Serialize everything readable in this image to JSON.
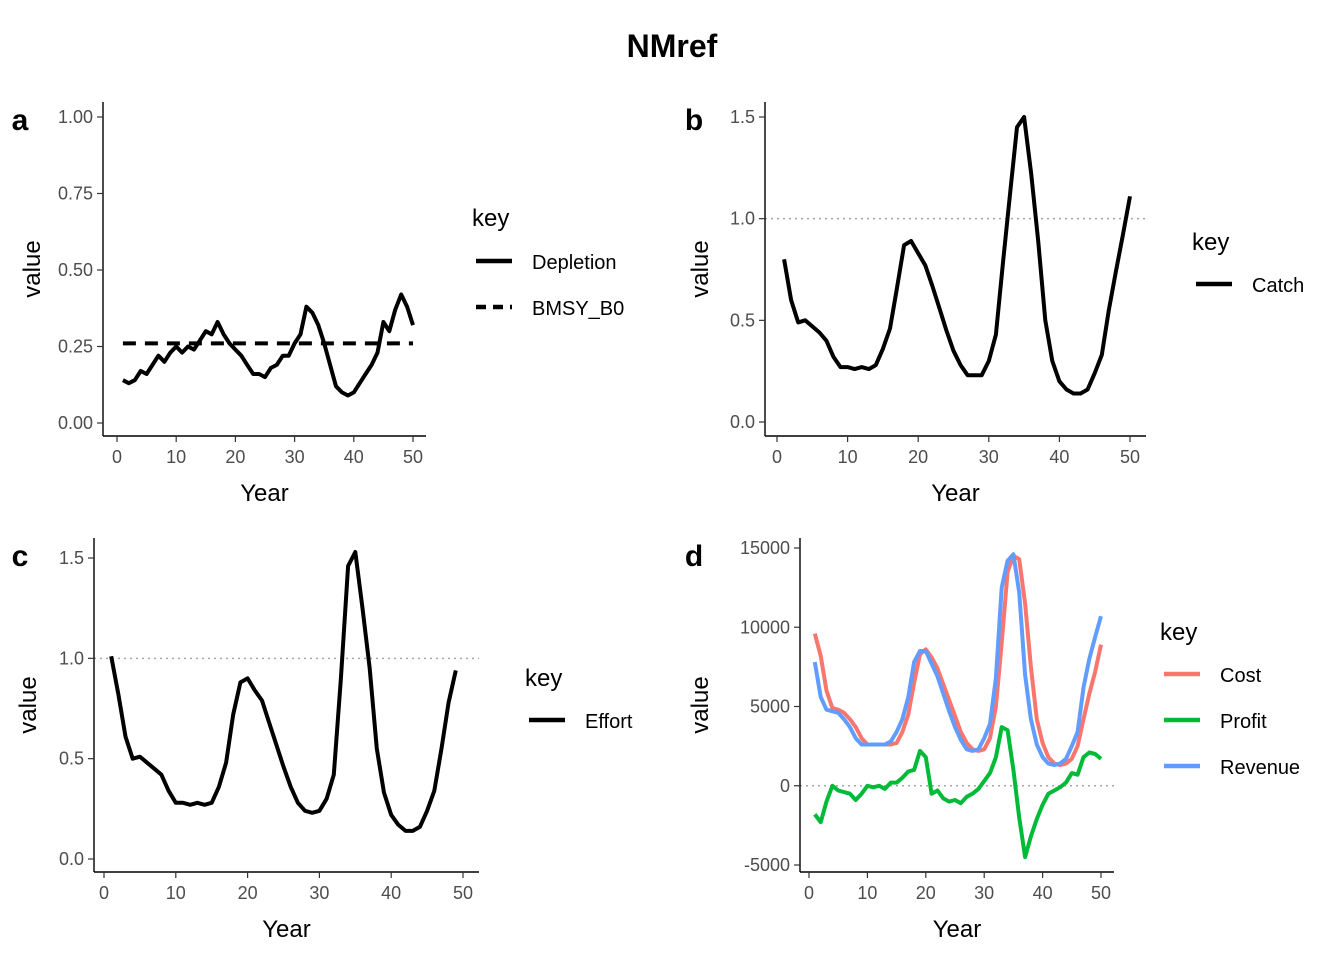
{
  "title": "NMref",
  "chart_data": [
    {
      "panel": "a",
      "type": "line",
      "xlabel": "Year",
      "ylabel": "value",
      "xlim": [
        0,
        50
      ],
      "ylim": [
        0,
        1
      ],
      "xticks": [
        "0",
        "10",
        "20",
        "30",
        "40",
        "50"
      ],
      "yticks": [
        "0.00",
        "0.25",
        "0.50",
        "0.75",
        "1.00"
      ],
      "ref_line": null,
      "legend": {
        "title": "key",
        "position": "right"
      },
      "series": [
        {
          "name": "Depletion",
          "style": "solid",
          "color": "#000000",
          "x": [
            1,
            2,
            3,
            4,
            5,
            6,
            7,
            8,
            9,
            10,
            11,
            12,
            13,
            14,
            15,
            16,
            17,
            18,
            19,
            20,
            21,
            22,
            23,
            24,
            25,
            26,
            27,
            28,
            29,
            30,
            31,
            32,
            33,
            34,
            35,
            36,
            37,
            38,
            39,
            40,
            41,
            42,
            43,
            44,
            45,
            46,
            47,
            48,
            49,
            50
          ],
          "y": [
            0.14,
            0.13,
            0.14,
            0.17,
            0.16,
            0.19,
            0.22,
            0.2,
            0.23,
            0.25,
            0.23,
            0.25,
            0.24,
            0.27,
            0.3,
            0.29,
            0.33,
            0.29,
            0.26,
            0.24,
            0.22,
            0.19,
            0.16,
            0.16,
            0.15,
            0.18,
            0.19,
            0.22,
            0.22,
            0.26,
            0.29,
            0.38,
            0.36,
            0.32,
            0.26,
            0.19,
            0.12,
            0.1,
            0.09,
            0.1,
            0.13,
            0.16,
            0.19,
            0.23,
            0.33,
            0.3,
            0.37,
            0.42,
            0.38,
            0.32
          ]
        },
        {
          "name": "BMSY_B0",
          "style": "dashed",
          "color": "#000000",
          "x": [
            1,
            50
          ],
          "y": [
            0.26,
            0.26
          ]
        }
      ]
    },
    {
      "panel": "b",
      "type": "line",
      "xlabel": "Year",
      "ylabel": "value",
      "xlim": [
        0,
        50
      ],
      "ylim": [
        0,
        1.5
      ],
      "xticks": [
        "0",
        "10",
        "20",
        "30",
        "40",
        "50"
      ],
      "yticks": [
        "0.0",
        "0.5",
        "1.0",
        "1.5"
      ],
      "ref_line": 1.0,
      "legend": {
        "title": "key",
        "position": "right"
      },
      "series": [
        {
          "name": "Catch",
          "style": "solid",
          "color": "#000000",
          "x": [
            1,
            2,
            3,
            4,
            5,
            6,
            7,
            8,
            9,
            10,
            11,
            12,
            13,
            14,
            15,
            16,
            17,
            18,
            19,
            20,
            21,
            22,
            23,
            24,
            25,
            26,
            27,
            28,
            29,
            30,
            31,
            32,
            33,
            34,
            35,
            36,
            37,
            38,
            39,
            40,
            41,
            42,
            43,
            44,
            45,
            46,
            47,
            48,
            49,
            50
          ],
          "y": [
            0.8,
            0.6,
            0.49,
            0.5,
            0.47,
            0.44,
            0.4,
            0.32,
            0.27,
            0.27,
            0.26,
            0.27,
            0.26,
            0.28,
            0.36,
            0.46,
            0.66,
            0.87,
            0.89,
            0.83,
            0.77,
            0.67,
            0.56,
            0.45,
            0.35,
            0.28,
            0.23,
            0.23,
            0.23,
            0.3,
            0.43,
            0.78,
            1.12,
            1.45,
            1.5,
            1.22,
            0.89,
            0.5,
            0.3,
            0.2,
            0.16,
            0.14,
            0.14,
            0.16,
            0.24,
            0.33,
            0.55,
            0.74,
            0.92,
            1.11
          ]
        }
      ]
    },
    {
      "panel": "c",
      "type": "line",
      "xlabel": "Year",
      "ylabel": "value",
      "xlim": [
        0,
        50
      ],
      "ylim": [
        0,
        1.5
      ],
      "xticks": [
        "0",
        "10",
        "20",
        "30",
        "40",
        "50"
      ],
      "yticks": [
        "0.0",
        "0.5",
        "1.0",
        "1.5"
      ],
      "ref_line": 1.0,
      "legend": {
        "title": "key",
        "position": "right"
      },
      "series": [
        {
          "name": "Effort",
          "style": "solid",
          "color": "#000000",
          "x": [
            1,
            2,
            3,
            4,
            5,
            6,
            7,
            8,
            9,
            10,
            11,
            12,
            13,
            14,
            15,
            16,
            17,
            18,
            19,
            20,
            21,
            22,
            23,
            24,
            25,
            26,
            27,
            28,
            29,
            30,
            31,
            32,
            33,
            34,
            35,
            36,
            37,
            38,
            39,
            40,
            41,
            42,
            43,
            44,
            45,
            46,
            47,
            48,
            49,
            50
          ],
          "y": [
            1.01,
            0.82,
            0.61,
            0.5,
            0.51,
            0.48,
            0.45,
            0.42,
            0.34,
            0.28,
            0.28,
            0.27,
            0.28,
            0.27,
            0.28,
            0.36,
            0.48,
            0.72,
            0.88,
            0.9,
            0.84,
            0.79,
            0.68,
            0.57,
            0.46,
            0.36,
            0.28,
            0.24,
            0.23,
            0.24,
            0.3,
            0.42,
            0.9,
            1.46,
            1.53,
            1.25,
            0.95,
            0.55,
            0.33,
            0.22,
            0.17,
            0.14,
            0.14,
            0.16,
            0.24,
            0.34,
            0.55,
            0.78,
            0.94,
            null
          ]
        }
      ]
    },
    {
      "panel": "d",
      "type": "line",
      "xlabel": "Year",
      "ylabel": "value",
      "xlim": [
        0,
        50
      ],
      "ylim": [
        -5000,
        15000
      ],
      "xticks": [
        "0",
        "10",
        "20",
        "30",
        "40",
        "50"
      ],
      "yticks": [
        "-5000",
        "0",
        "5000",
        "10000",
        "15000"
      ],
      "ref_line": 0,
      "legend": {
        "title": "key",
        "position": "right"
      },
      "series": [
        {
          "name": "Cost",
          "style": "solid",
          "color": "#F8766D",
          "x": [
            1,
            2,
            3,
            4,
            5,
            6,
            7,
            8,
            9,
            10,
            11,
            12,
            13,
            14,
            15,
            16,
            17,
            18,
            19,
            20,
            21,
            22,
            23,
            24,
            25,
            26,
            27,
            28,
            29,
            30,
            31,
            32,
            33,
            34,
            35,
            36,
            37,
            38,
            39,
            40,
            41,
            42,
            43,
            44,
            45,
            46,
            47,
            48,
            49,
            50
          ],
          "y": [
            9600,
            8200,
            6000,
            4900,
            4800,
            4600,
            4200,
            3700,
            3000,
            2600,
            2600,
            2600,
            2600,
            2600,
            2700,
            3400,
            4500,
            6500,
            8300,
            8600,
            8100,
            7400,
            6400,
            5400,
            4400,
            3400,
            2700,
            2300,
            2200,
            2300,
            3000,
            5000,
            9000,
            13500,
            14500,
            14300,
            11500,
            7500,
            4200,
            2700,
            1800,
            1400,
            1300,
            1400,
            1700,
            2500,
            4200,
            5800,
            7200,
            8900
          ]
        },
        {
          "name": "Profit",
          "style": "solid",
          "color": "#00BA38",
          "x": [
            1,
            2,
            3,
            4,
            5,
            6,
            7,
            8,
            9,
            10,
            11,
            12,
            13,
            14,
            15,
            16,
            17,
            18,
            19,
            20,
            21,
            22,
            23,
            24,
            25,
            26,
            27,
            28,
            29,
            30,
            31,
            32,
            33,
            34,
            35,
            36,
            37,
            38,
            39,
            40,
            41,
            42,
            43,
            44,
            45,
            46,
            47,
            48,
            49,
            50
          ],
          "y": [
            -1800,
            -2300,
            -1000,
            0,
            -300,
            -400,
            -500,
            -900,
            -500,
            0,
            -100,
            0,
            -200,
            200,
            200,
            500,
            900,
            1000,
            2200,
            1800,
            -500,
            -300,
            -800,
            -1000,
            -900,
            -1100,
            -700,
            -500,
            -200,
            300,
            800,
            1800,
            3700,
            3500,
            1000,
            -2000,
            -4500,
            -3200,
            -2100,
            -1200,
            -500,
            -300,
            -100,
            200,
            800,
            700,
            1800,
            2100,
            2000,
            1700
          ]
        },
        {
          "name": "Revenue",
          "style": "solid",
          "color": "#619CFF",
          "x": [
            1,
            2,
            3,
            4,
            5,
            6,
            7,
            8,
            9,
            10,
            11,
            12,
            13,
            14,
            15,
            16,
            17,
            18,
            19,
            20,
            21,
            22,
            23,
            24,
            25,
            26,
            27,
            28,
            29,
            30,
            31,
            32,
            33,
            34,
            35,
            36,
            37,
            38,
            39,
            40,
            41,
            42,
            43,
            44,
            45,
            46,
            47,
            48,
            49,
            50
          ],
          "y": [
            7800,
            5600,
            4800,
            4700,
            4600,
            4200,
            3700,
            3000,
            2600,
            2600,
            2600,
            2600,
            2600,
            2800,
            3400,
            4200,
            5600,
            7800,
            8500,
            8500,
            7700,
            6900,
            5800,
            4700,
            3700,
            2900,
            2300,
            2200,
            2300,
            3000,
            3900,
            6800,
            12500,
            14200,
            14600,
            12200,
            7000,
            4200,
            2600,
            1800,
            1400,
            1300,
            1400,
            1700,
            2500,
            3400,
            6200,
            8000,
            9400,
            10700
          ]
        }
      ]
    }
  ]
}
